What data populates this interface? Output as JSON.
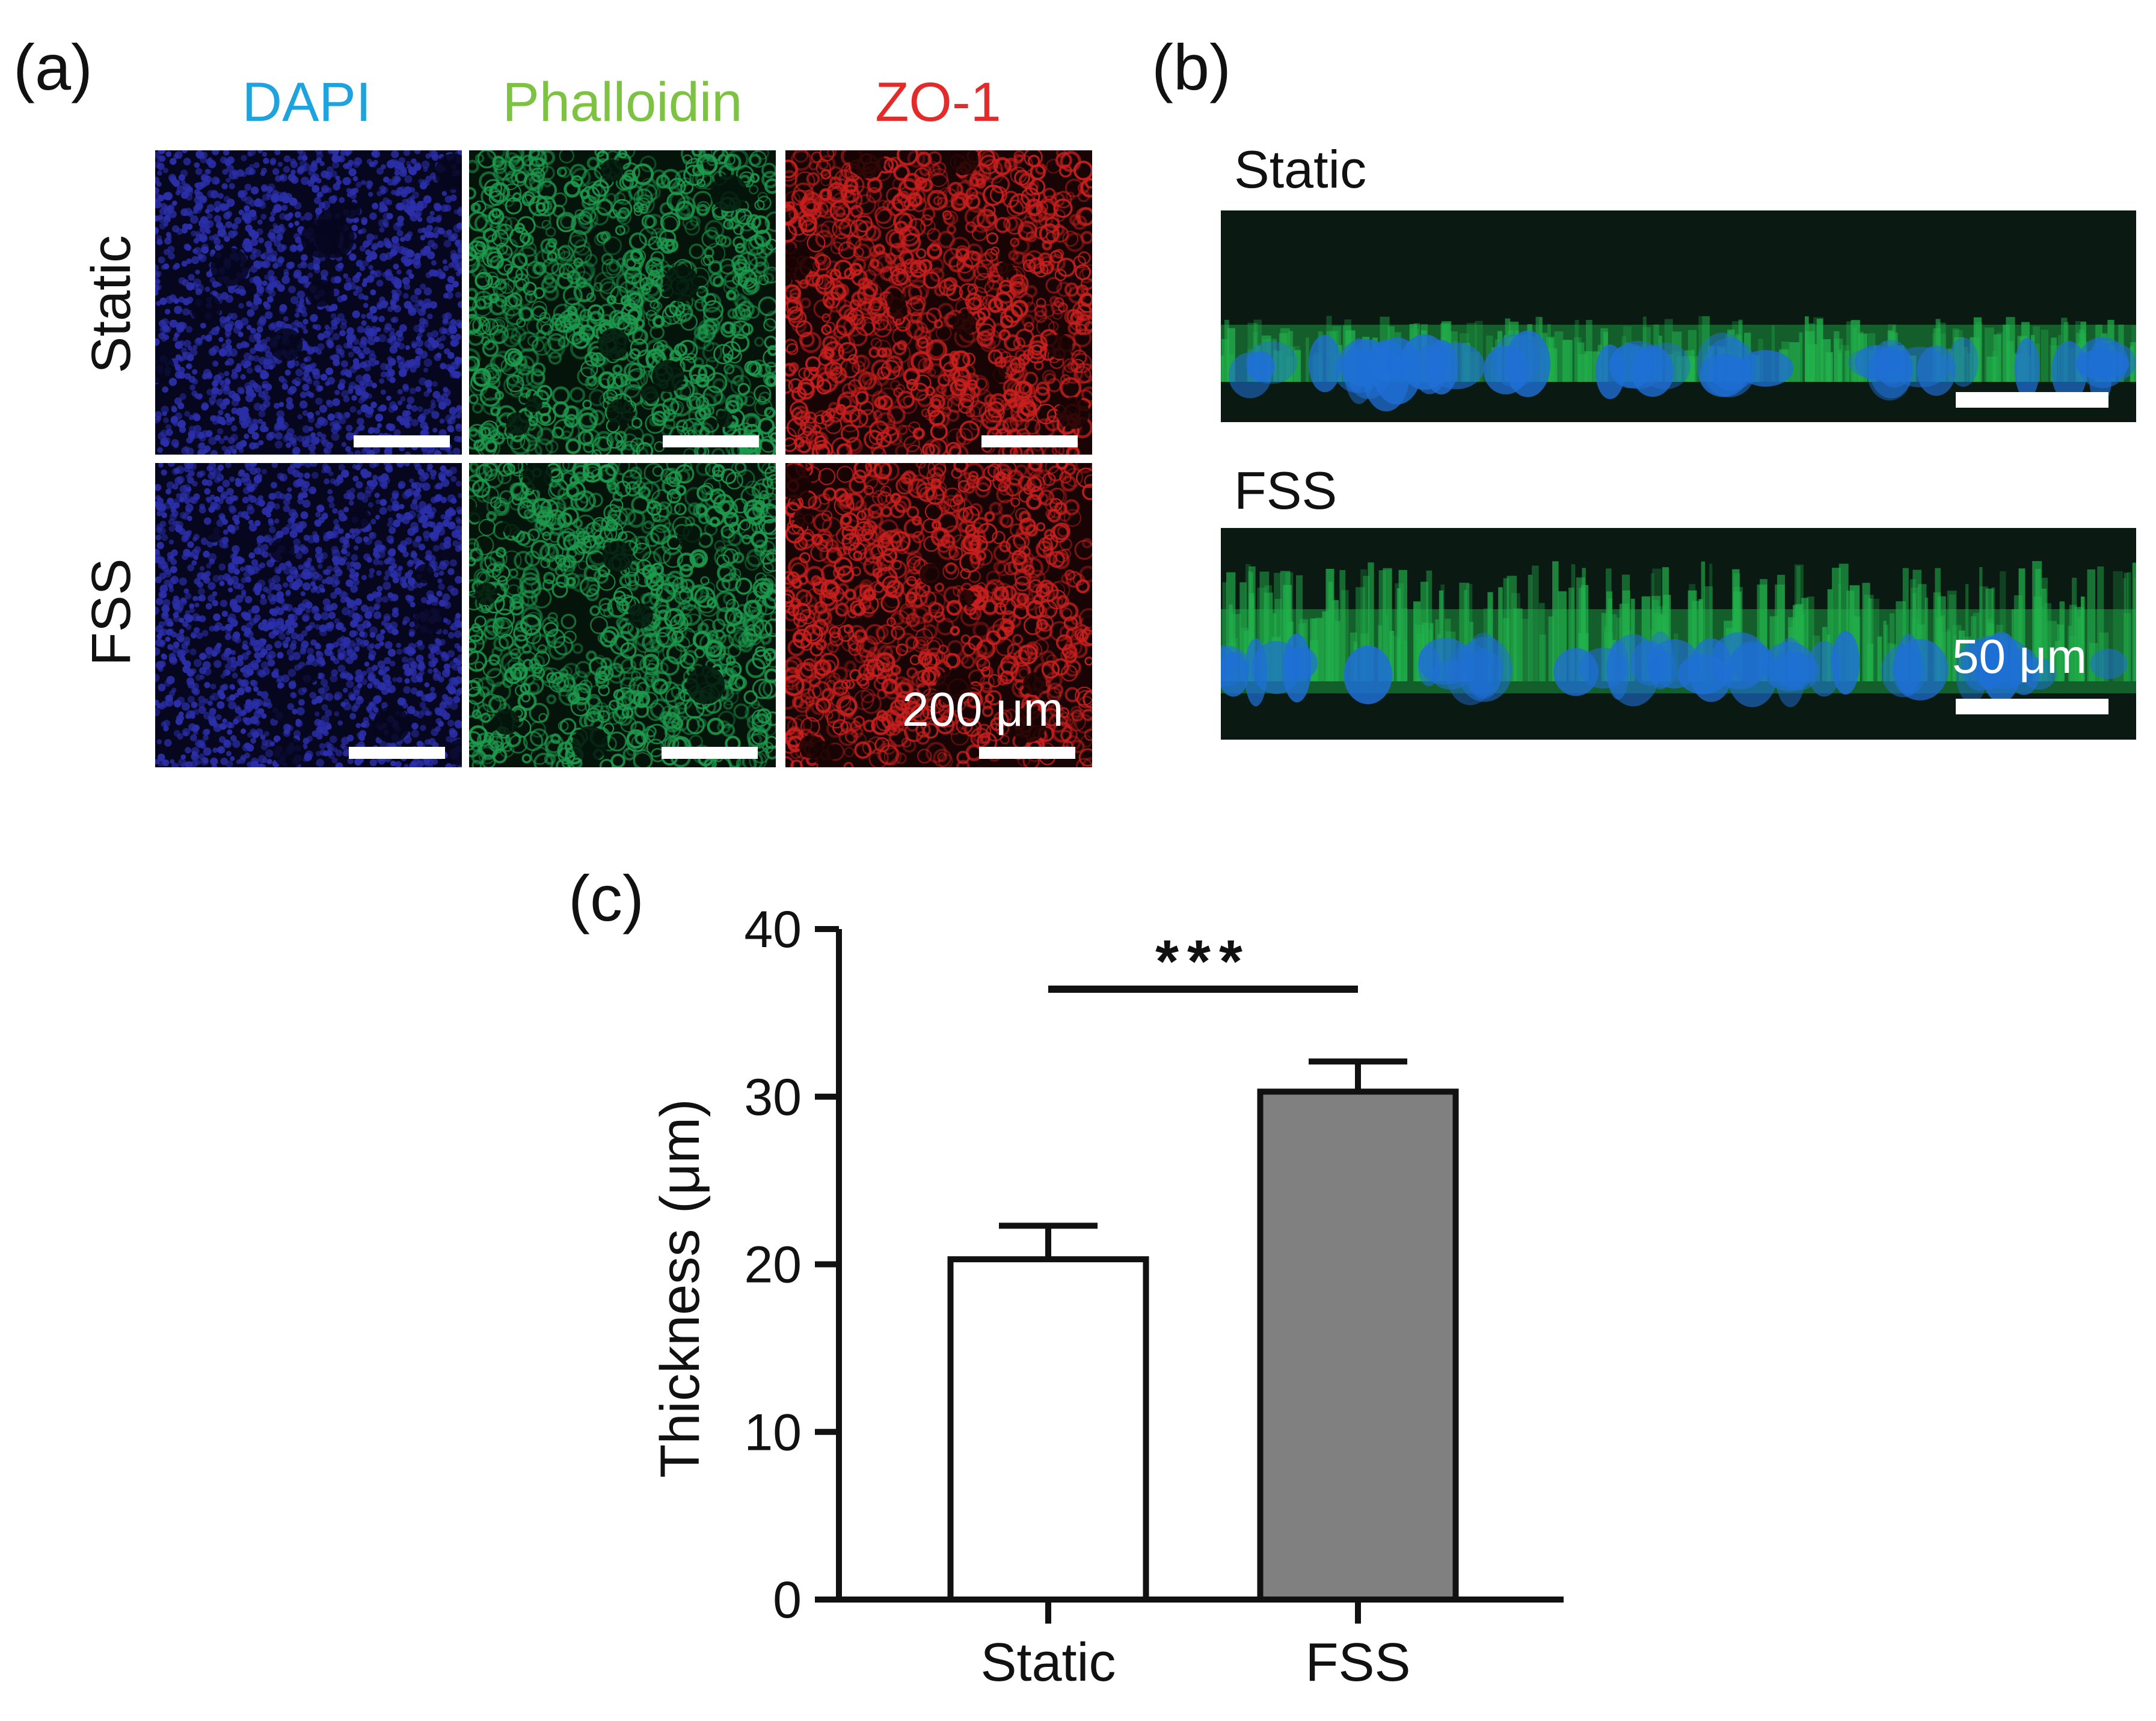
{
  "panels": {
    "a": {
      "label": "(a)",
      "channels": [
        {
          "name": "DAPI",
          "color": "#1fa3de"
        },
        {
          "name": "Phalloidin",
          "color": "#7dc242"
        },
        {
          "name": "ZO-1",
          "color": "#e32b2b"
        }
      ],
      "rows": [
        "Static",
        "FSS"
      ],
      "image_colors": {
        "dapi": "#2b2fa8",
        "phalloidin": "#1e9a4e",
        "zo1": "#c8201e"
      },
      "scale_label": "200 μm"
    },
    "b": {
      "label": "(b)",
      "rows": [
        "Static",
        "FSS"
      ],
      "scale_label": "50 μm",
      "image_colors": {
        "nuclei": "#1f6fd6",
        "actin": "#22b24c",
        "background": "#0a1a12"
      }
    },
    "c": {
      "label": "(c)"
    }
  },
  "chart_data": {
    "type": "bar",
    "categories": [
      "Static",
      "FSS"
    ],
    "values": [
      20.3,
      30.3
    ],
    "errors": [
      2.0,
      1.8
    ],
    "bar_colors": [
      "#ffffff",
      "#808080"
    ],
    "ylabel": "Thickness (μm)",
    "xlabel": "",
    "ylim": [
      0,
      40
    ],
    "yticks": [
      0,
      10,
      20,
      30,
      40
    ],
    "significance": {
      "between": [
        "Static",
        "FSS"
      ],
      "label": "***"
    },
    "grid": false
  }
}
